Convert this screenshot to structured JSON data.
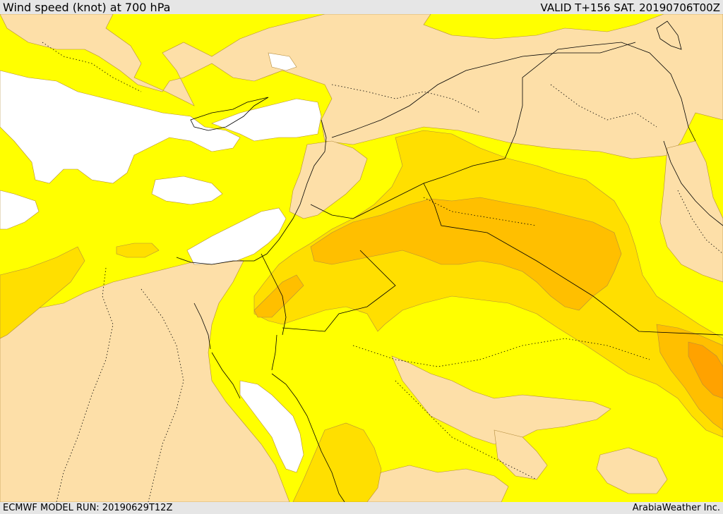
{
  "header": {
    "title": "Wind speed (knot) at 700 hPa",
    "valid": "VALID T+156 SAT. 20190706T00Z"
  },
  "footer": {
    "model_run": "ECMWF MODEL RUN: 20190629T12Z",
    "credit": "ArabiaWeather Inc."
  },
  "map": {
    "colors": {
      "calm": "#ffffff",
      "light": "#fddfa8",
      "moderate": "#ffff00",
      "fresh": "#ffdf00",
      "strong": "#ffbf00",
      "very_strong": "#ffa200"
    }
  }
}
